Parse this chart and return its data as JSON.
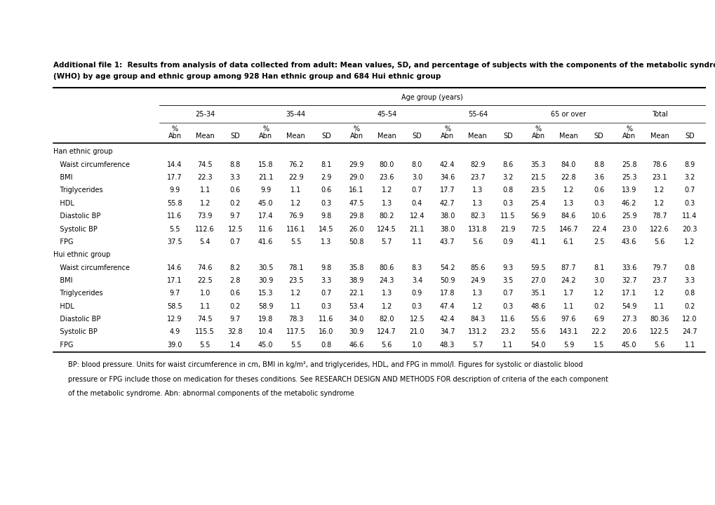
{
  "title_line1": "Additional file 1:  Results from analysis of data collected from adult: Mean values, SD, and percentage of subjects with the components of the metabolic syndrome (IDF) and BMI",
  "title_line2": "(WHO) by age group and ethnic group among 928 Han ethnic group and 684 Hui ethnic group",
  "age_group_header": "Age group (years)",
  "col_groups": [
    "25-34",
    "35-44",
    "45-54",
    "55-64",
    "65 or over",
    "Total"
  ],
  "han_data": [
    [
      14.4,
      74.5,
      8.8,
      15.8,
      76.2,
      8.1,
      29.9,
      80.0,
      8.0,
      42.4,
      82.9,
      8.6,
      35.3,
      84.0,
      8.8,
      25.8,
      78.6,
      8.9
    ],
    [
      17.7,
      22.3,
      3.3,
      21.1,
      22.9,
      2.9,
      29.0,
      23.6,
      3.0,
      34.6,
      23.7,
      3.2,
      21.5,
      22.8,
      3.6,
      25.3,
      23.1,
      3.2
    ],
    [
      9.9,
      1.1,
      0.6,
      9.9,
      1.1,
      0.6,
      16.1,
      1.2,
      0.7,
      17.7,
      1.3,
      0.8,
      23.5,
      1.2,
      0.6,
      13.9,
      1.2,
      0.7
    ],
    [
      55.8,
      1.2,
      0.2,
      45.0,
      1.2,
      0.3,
      47.5,
      1.3,
      0.4,
      42.7,
      1.3,
      0.3,
      25.4,
      1.3,
      0.3,
      46.2,
      1.2,
      0.3
    ],
    [
      11.6,
      73.9,
      9.7,
      17.4,
      76.9,
      9.8,
      29.8,
      80.2,
      12.4,
      38.0,
      82.3,
      11.5,
      56.9,
      84.6,
      10.6,
      25.9,
      78.7,
      11.4
    ],
    [
      5.5,
      112.6,
      12.5,
      11.6,
      116.1,
      14.5,
      26.0,
      124.5,
      21.1,
      38.0,
      131.8,
      21.9,
      72.5,
      146.7,
      22.4,
      23.0,
      122.6,
      20.3
    ],
    [
      37.5,
      5.4,
      0.7,
      41.6,
      5.5,
      1.3,
      50.8,
      5.7,
      1.1,
      43.7,
      5.6,
      0.9,
      41.1,
      6.1,
      2.5,
      43.6,
      5.6,
      1.2
    ]
  ],
  "hui_data": [
    [
      14.6,
      74.6,
      8.2,
      30.5,
      78.1,
      9.8,
      35.8,
      80.6,
      8.3,
      54.2,
      85.6,
      9.3,
      59.5,
      87.7,
      8.1,
      33.6,
      79.7,
      0.8
    ],
    [
      17.1,
      22.5,
      2.8,
      30.9,
      23.5,
      3.3,
      38.9,
      24.3,
      3.4,
      50.9,
      24.9,
      3.5,
      27.0,
      24.2,
      3.0,
      32.7,
      23.7,
      3.3
    ],
    [
      9.7,
      1.0,
      0.6,
      15.3,
      1.2,
      0.7,
      22.1,
      1.3,
      0.9,
      17.8,
      1.3,
      0.7,
      35.1,
      1.7,
      1.2,
      17.1,
      1.2,
      0.8
    ],
    [
      58.5,
      1.1,
      0.2,
      58.9,
      1.1,
      0.3,
      53.4,
      1.2,
      0.3,
      47.4,
      1.2,
      0.3,
      48.6,
      1.1,
      0.2,
      54.9,
      1.1,
      0.2
    ],
    [
      12.9,
      74.5,
      9.7,
      19.8,
      78.3,
      11.6,
      34.0,
      82.0,
      12.5,
      42.4,
      84.3,
      11.6,
      55.6,
      97.6,
      6.9,
      27.3,
      80.36,
      12.0
    ],
    [
      4.9,
      115.5,
      32.8,
      10.4,
      117.5,
      16.0,
      30.9,
      124.7,
      21.0,
      34.7,
      131.2,
      23.2,
      55.6,
      143.1,
      22.2,
      20.6,
      122.5,
      24.7
    ],
    [
      39.0,
      5.5,
      1.4,
      45.0,
      5.5,
      0.8,
      46.6,
      5.6,
      1.0,
      48.3,
      5.7,
      1.1,
      54.0,
      5.9,
      1.5,
      45.0,
      5.6,
      1.1
    ]
  ],
  "han_labels": [
    "Waist circumference",
    "BMI",
    "Triglycerides",
    "HDL",
    "Diastolic BP",
    "Systolic BP",
    "FPG"
  ],
  "hui_labels": [
    "Waist circumference",
    "BMI",
    "Triglycerides",
    "HDL",
    "Diastolic BP",
    "Systolic BP",
    "FPG"
  ],
  "footnote_line1": "BP: blood pressure. Units for waist circumference in cm, BMI in kg/m², and triglycerides, HDL, and FPG in mmol/l. Figures for systolic or diastolic blood",
  "footnote_line2": "pressure or FPG include those on medication for theses conditions. See RESEARCH DESIGN AND METHODS FOR description of criteria of the each component",
  "footnote_line3": "of the metabolic syndrome. Abn: abnormal components of the metabolic syndrome",
  "font_size": 7.0,
  "title_font_size": 7.5,
  "footnote_font_size": 7.0
}
